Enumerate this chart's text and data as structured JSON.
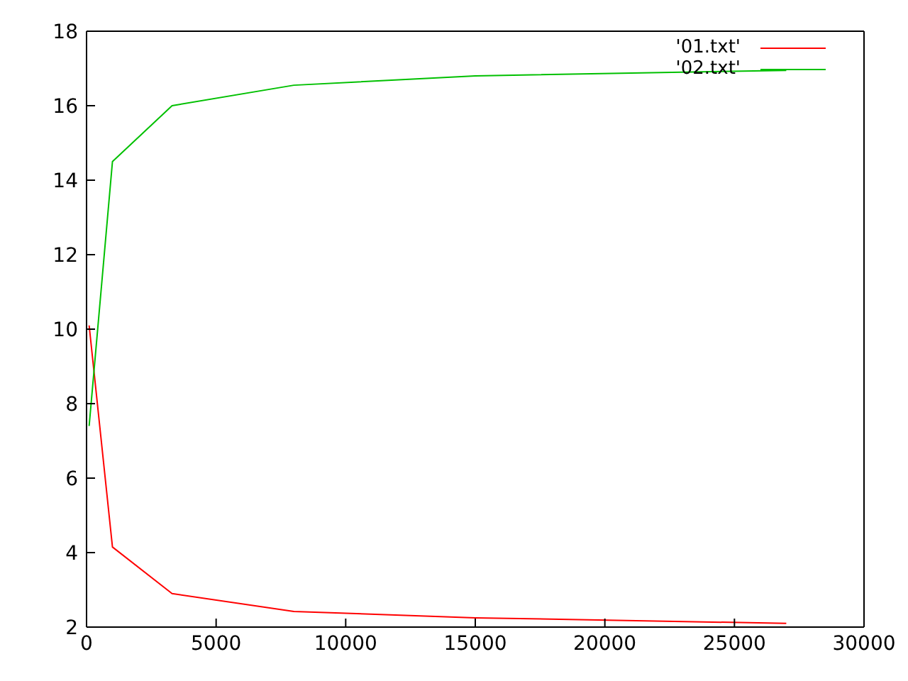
{
  "chart_data": {
    "type": "line",
    "x": [
      100,
      1000,
      3300,
      8000,
      15000,
      27000
    ],
    "series": [
      {
        "name": "'01.txt'",
        "color": "#ff0000",
        "values": [
          10.1,
          4.15,
          2.9,
          2.42,
          2.25,
          2.1
        ]
      },
      {
        "name": "'02.txt'",
        "color": "#00c000",
        "values": [
          7.4,
          14.5,
          16.0,
          16.55,
          16.8,
          16.95
        ]
      }
    ],
    "xlim": [
      0,
      30000
    ],
    "xticks": [
      0,
      5000,
      10000,
      15000,
      20000,
      25000,
      30000
    ],
    "ylim": [
      2,
      18
    ],
    "yticks": [
      2,
      4,
      6,
      8,
      10,
      12,
      14,
      16,
      18
    ],
    "grid": false,
    "legend": "top right",
    "marker": "none",
    "line_style": "solid"
  }
}
